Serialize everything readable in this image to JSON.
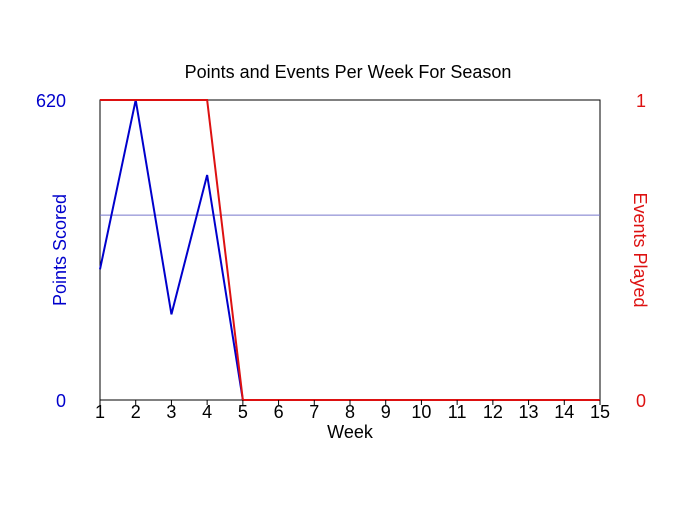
{
  "chart_data": {
    "type": "line",
    "title": "Points and Events Per Week For Season",
    "xlabel": "Week",
    "ylabel_left": "Points Scored",
    "ylabel_right": "Events Played",
    "x": [
      1,
      2,
      3,
      4,
      5,
      6,
      7,
      8,
      9,
      10,
      11,
      12,
      13,
      14,
      15
    ],
    "xlim": [
      1,
      15
    ],
    "ylim_left": [
      0,
      620
    ],
    "ylim_right": [
      0,
      1
    ],
    "left_ticks": [
      0,
      620
    ],
    "right_ticks": [
      0,
      1
    ],
    "average_line": {
      "axis": "left",
      "value": 382
    },
    "series": [
      {
        "axis": "left",
        "color": "#0000CC",
        "values": [
          270,
          620,
          177,
          465,
          0,
          0,
          0,
          0,
          0,
          0,
          0,
          0,
          0,
          0,
          0
        ]
      },
      {
        "axis": "right",
        "color": "#DD1111",
        "values": [
          1,
          1,
          1,
          1,
          0,
          0,
          0,
          0,
          0,
          0,
          0,
          0,
          0,
          0,
          0
        ]
      }
    ],
    "colors": {
      "left_axis": "#0000CC",
      "right_axis": "#DD1111",
      "average_line": "#7777CC",
      "frame": "#000000"
    }
  }
}
